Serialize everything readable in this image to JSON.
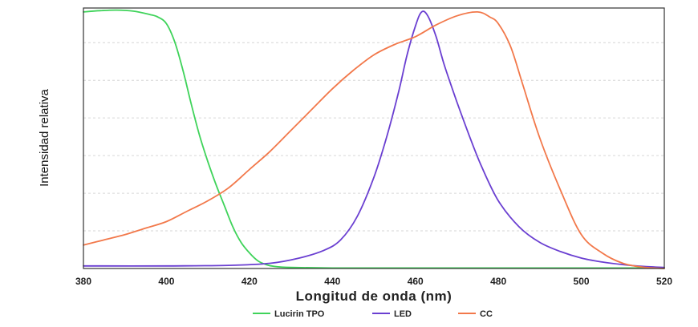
{
  "chart_data": {
    "type": "line",
    "title": "",
    "xlabel": "Longitud de onda (nm)",
    "ylabel": "Intensidad relativa",
    "xlim": [
      380,
      520
    ],
    "ylim": [
      0,
      1
    ],
    "x_ticks": [
      "380",
      "400",
      "420",
      "440",
      "460",
      "480",
      "500",
      "520"
    ],
    "grid": true,
    "legend_position": "bottom-center",
    "series": [
      {
        "name": "Lucirin TPO",
        "color": "#3fd35a",
        "points": [
          [
            380,
            0.985
          ],
          [
            384,
            0.99
          ],
          [
            388,
            0.992
          ],
          [
            392,
            0.988
          ],
          [
            396,
            0.975
          ],
          [
            398,
            0.965
          ],
          [
            400,
            0.94
          ],
          [
            402,
            0.87
          ],
          [
            404,
            0.76
          ],
          [
            406,
            0.63
          ],
          [
            408,
            0.51
          ],
          [
            410,
            0.41
          ],
          [
            412,
            0.32
          ],
          [
            414,
            0.24
          ],
          [
            416,
            0.16
          ],
          [
            418,
            0.1
          ],
          [
            420,
            0.06
          ],
          [
            422,
            0.03
          ],
          [
            424,
            0.015
          ],
          [
            426,
            0.008
          ],
          [
            430,
            0.004
          ],
          [
            440,
            0.002
          ],
          [
            460,
            0.002
          ],
          [
            500,
            0.002
          ],
          [
            520,
            0.002
          ]
        ]
      },
      {
        "name": "LED",
        "color": "#6a3fd1",
        "points": [
          [
            380,
            0.01
          ],
          [
            400,
            0.01
          ],
          [
            415,
            0.012
          ],
          [
            425,
            0.02
          ],
          [
            432,
            0.04
          ],
          [
            438,
            0.07
          ],
          [
            442,
            0.11
          ],
          [
            446,
            0.2
          ],
          [
            450,
            0.35
          ],
          [
            453,
            0.5
          ],
          [
            456,
            0.68
          ],
          [
            458,
            0.82
          ],
          [
            460,
            0.93
          ],
          [
            461.5,
            0.985
          ],
          [
            463,
            0.97
          ],
          [
            465,
            0.89
          ],
          [
            467,
            0.78
          ],
          [
            470,
            0.64
          ],
          [
            473,
            0.51
          ],
          [
            476,
            0.39
          ],
          [
            480,
            0.26
          ],
          [
            485,
            0.16
          ],
          [
            490,
            0.1
          ],
          [
            495,
            0.065
          ],
          [
            500,
            0.04
          ],
          [
            505,
            0.025
          ],
          [
            510,
            0.015
          ],
          [
            515,
            0.008
          ],
          [
            520,
            0.004
          ]
        ]
      },
      {
        "name": "CC",
        "color": "#f2784a",
        "points": [
          [
            380,
            0.09
          ],
          [
            385,
            0.11
          ],
          [
            390,
            0.13
          ],
          [
            395,
            0.155
          ],
          [
            400,
            0.18
          ],
          [
            405,
            0.22
          ],
          [
            410,
            0.26
          ],
          [
            415,
            0.31
          ],
          [
            420,
            0.38
          ],
          [
            425,
            0.45
          ],
          [
            430,
            0.53
          ],
          [
            435,
            0.61
          ],
          [
            440,
            0.69
          ],
          [
            445,
            0.76
          ],
          [
            450,
            0.82
          ],
          [
            455,
            0.86
          ],
          [
            460,
            0.89
          ],
          [
            465,
            0.935
          ],
          [
            470,
            0.97
          ],
          [
            475,
            0.985
          ],
          [
            478,
            0.965
          ],
          [
            480,
            0.94
          ],
          [
            483,
            0.85
          ],
          [
            486,
            0.7
          ],
          [
            490,
            0.5
          ],
          [
            495,
            0.3
          ],
          [
            500,
            0.13
          ],
          [
            505,
            0.06
          ],
          [
            510,
            0.02
          ],
          [
            515,
            0.005
          ],
          [
            520,
            0.0
          ]
        ]
      }
    ]
  }
}
